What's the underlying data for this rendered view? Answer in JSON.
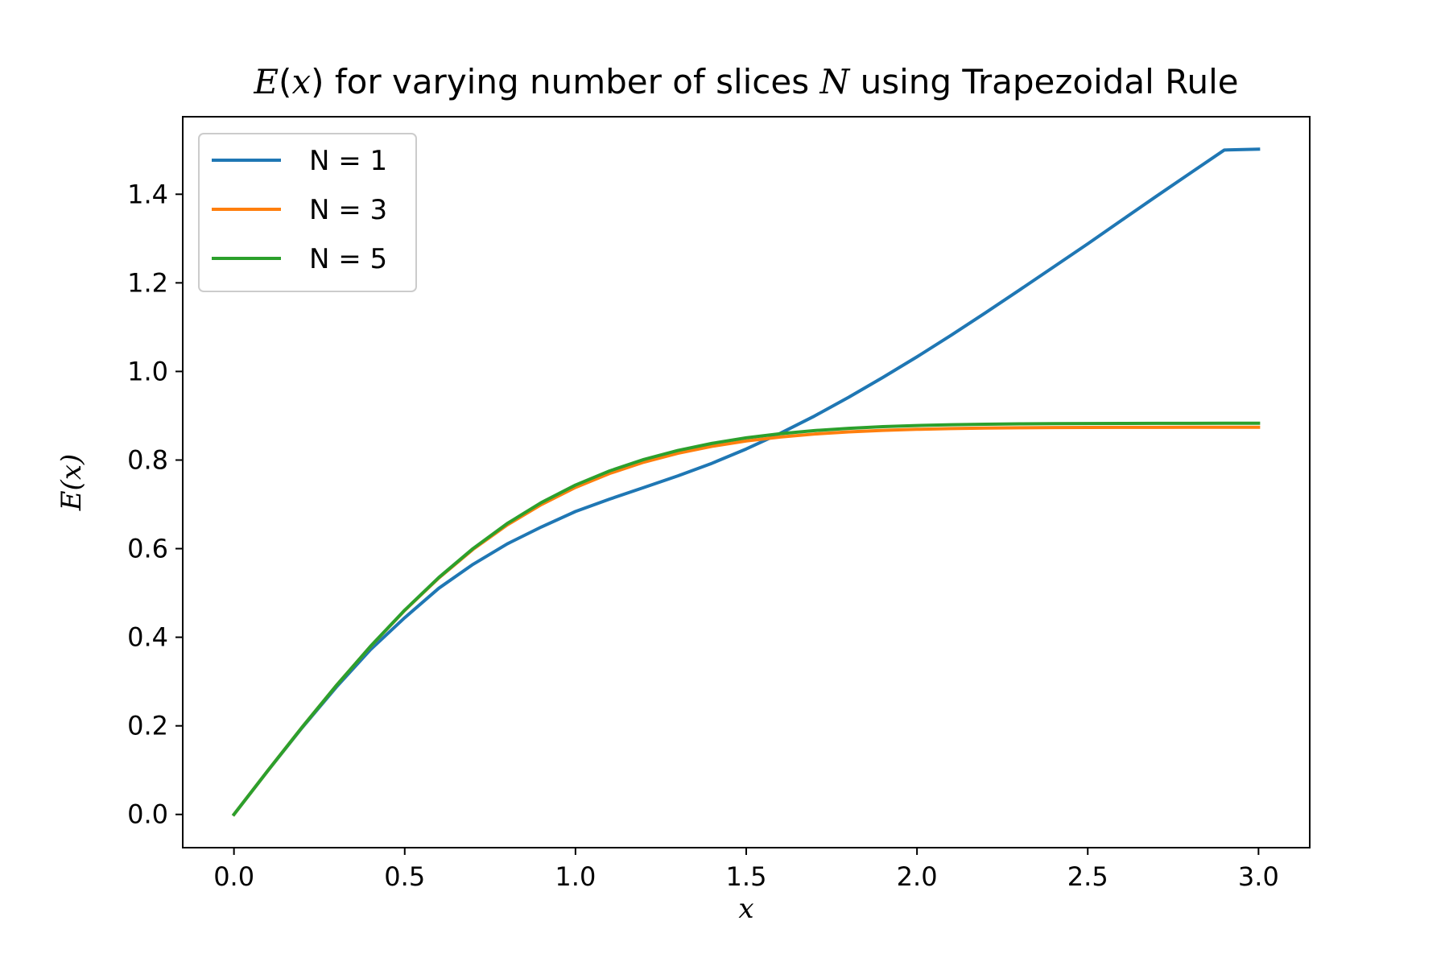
{
  "colors": {
    "series": [
      "#1f77b4",
      "#ff7f0e",
      "#2ca02c"
    ],
    "axis": "#000000",
    "legend_border": "#cccccc"
  },
  "chart_data": {
    "type": "line",
    "title_parts": [
      {
        "text": "E",
        "italic": true
      },
      {
        "text": "(",
        "italic": false
      },
      {
        "text": "x",
        "italic": true
      },
      {
        "text": ") for varying number of slices ",
        "italic": false
      },
      {
        "text": "N",
        "italic": true
      },
      {
        "text": " using Trapezoidal Rule",
        "italic": false
      }
    ],
    "xlabel": "x",
    "ylabel": "E(x)",
    "xlim": [
      -0.15,
      3.15
    ],
    "ylim": [
      -0.075,
      1.575
    ],
    "xticks": [
      0.0,
      0.5,
      1.0,
      1.5,
      2.0,
      2.5,
      3.0
    ],
    "xtick_labels": [
      "0.0",
      "0.5",
      "1.0",
      "1.5",
      "2.0",
      "2.5",
      "3.0"
    ],
    "yticks": [
      0.0,
      0.2,
      0.4,
      0.6,
      0.8,
      1.0,
      1.2,
      1.4
    ],
    "ytick_labels": [
      "0.0",
      "0.2",
      "0.4",
      "0.6",
      "0.8",
      "1.0",
      "1.2",
      "1.4"
    ],
    "grid": false,
    "legend_position": "upper-left",
    "x": [
      0.0,
      0.1,
      0.2,
      0.3,
      0.4,
      0.5,
      0.6,
      0.7,
      0.8,
      0.9,
      1.0,
      1.1,
      1.2,
      1.3,
      1.4,
      1.5,
      1.6,
      1.7,
      1.8,
      1.9,
      2.0,
      2.1,
      2.2,
      2.3,
      2.4,
      2.5,
      2.6,
      2.7,
      2.8,
      2.9,
      3.0
    ],
    "series": [
      {
        "name": "N = 1",
        "values": [
          0.0,
          0.0995,
          0.1961,
          0.2876,
          0.3721,
          0.4441,
          0.5107,
          0.5646,
          0.6107,
          0.6489,
          0.6839,
          0.7118,
          0.738,
          0.7643,
          0.7928,
          0.825,
          0.8605,
          0.8994,
          0.9417,
          0.9865,
          1.033,
          1.0817,
          1.1322,
          1.1837,
          1.2359,
          1.2881,
          1.3417,
          1.395,
          1.4476,
          1.4999,
          1.5018
        ]
      },
      {
        "name": "N = 3",
        "values": [
          0.0,
          0.0997,
          0.1974,
          0.2912,
          0.3794,
          0.4606,
          0.5338,
          0.5984,
          0.6535,
          0.6995,
          0.7382,
          0.7697,
          0.7952,
          0.8153,
          0.831,
          0.843,
          0.852,
          0.8587,
          0.8636,
          0.867,
          0.8694,
          0.871,
          0.8721,
          0.8728,
          0.8733,
          0.8736,
          0.8738,
          0.8739,
          0.874,
          0.8741,
          0.8741
        ]
      },
      {
        "name": "N = 5",
        "values": [
          0.0,
          0.0997,
          0.1974,
          0.2913,
          0.3797,
          0.4612,
          0.535,
          0.6002,
          0.6567,
          0.704,
          0.7435,
          0.7755,
          0.8012,
          0.8216,
          0.8377,
          0.8501,
          0.8595,
          0.8665,
          0.8716,
          0.8753,
          0.8779,
          0.8797,
          0.8809,
          0.8817,
          0.8822,
          0.8825,
          0.8827,
          0.8828,
          0.8829,
          0.883,
          0.883
        ]
      }
    ]
  }
}
